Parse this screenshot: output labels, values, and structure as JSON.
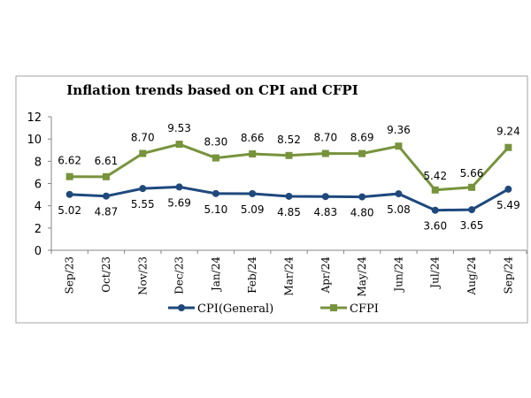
{
  "chart_data": {
    "type": "line",
    "title": "Inflation trends based on CPI and CFPI",
    "xlabel": "",
    "ylabel": "",
    "categories": [
      "Sep/23",
      "Oct/23",
      "Nov/23",
      "Dec/23",
      "Jan/24",
      "Feb/24",
      "Mar/24",
      "Apr/24",
      "May/24",
      "Jun/24",
      "Jul/24",
      "Aug/24",
      "Sep/24"
    ],
    "ylim": [
      0,
      12
    ],
    "yticks": [
      0,
      2,
      4,
      6,
      8,
      10,
      12
    ],
    "grid": false,
    "legend": "bottom",
    "series": [
      {
        "name": "CPI(General)",
        "color": "#1f497d",
        "marker": "circle",
        "values": [
          5.02,
          4.87,
          5.55,
          5.69,
          5.1,
          5.09,
          4.85,
          4.83,
          4.8,
          5.08,
          3.6,
          3.65,
          5.49
        ]
      },
      {
        "name": "CFPI",
        "color": "#77933c",
        "marker": "square",
        "values": [
          6.62,
          6.61,
          8.7,
          9.53,
          8.3,
          8.66,
          8.52,
          8.7,
          8.69,
          9.36,
          5.42,
          5.66,
          9.24
        ]
      }
    ]
  }
}
